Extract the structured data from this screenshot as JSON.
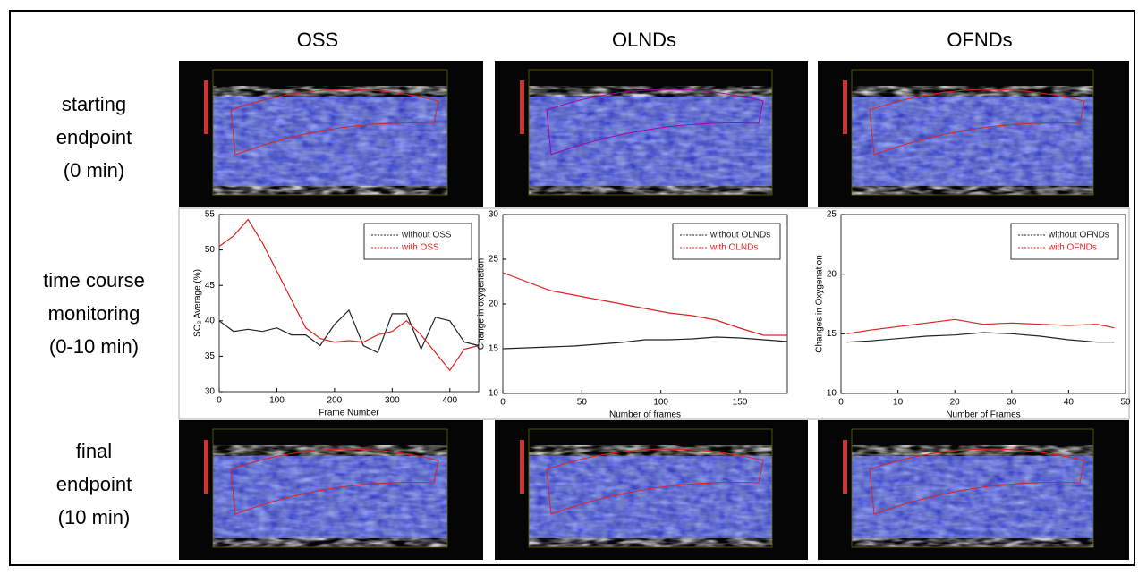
{
  "columns": [
    "OSS",
    "OLNDs",
    "OFNDs"
  ],
  "rows": [
    [
      "starting",
      "endpoint",
      "(0 min)"
    ],
    [
      "time course",
      "monitoring",
      "(0-10 min)"
    ],
    [
      "final",
      "endpoint",
      "(10 min)"
    ]
  ],
  "chart_data": [
    {
      "type": "line",
      "xlabel": "Frame Number",
      "ylabel": "SO₂ Average (%)",
      "x": [
        0,
        25,
        50,
        75,
        100,
        125,
        150,
        175,
        200,
        225,
        250,
        275,
        300,
        325,
        350,
        375,
        400,
        425,
        450
      ],
      "series": [
        {
          "name": "without OSS",
          "color": "#222222",
          "values": [
            40,
            38.5,
            38.8,
            38.5,
            39,
            38,
            38,
            36.5,
            39.5,
            41.5,
            36.5,
            35.5,
            41,
            41,
            36,
            40.5,
            40,
            37,
            36.5
          ]
        },
        {
          "name": "with OSS",
          "color": "#e02020",
          "values": [
            50.5,
            52,
            54.3,
            51,
            47,
            43,
            39,
            37.5,
            37,
            37.2,
            37,
            38,
            38.5,
            40,
            38,
            35.5,
            33,
            36,
            36.5
          ]
        }
      ],
      "xlim": [
        0,
        450
      ],
      "xticks": [
        0,
        100,
        200,
        300,
        400
      ],
      "ylim": [
        30,
        55
      ],
      "yticks": [
        30,
        35,
        40,
        45,
        50,
        55
      ],
      "legend": "upper right"
    },
    {
      "type": "line",
      "xlabel": "Number of frames",
      "ylabel": "Change in oxygenation",
      "x": [
        0,
        15,
        30,
        45,
        60,
        75,
        90,
        105,
        120,
        135,
        150,
        165,
        180
      ],
      "series": [
        {
          "name": "without OLNDs",
          "color": "#222222",
          "values": [
            15,
            15.1,
            15.2,
            15.3,
            15.5,
            15.7,
            16,
            16,
            16.1,
            16.3,
            16.2,
            16,
            15.8
          ]
        },
        {
          "name": "with OLNDs",
          "color": "#e02020",
          "values": [
            23.5,
            22.5,
            21.5,
            21,
            20.5,
            20,
            19.5,
            19,
            18.7,
            18.2,
            17.3,
            16.5,
            16.5
          ]
        }
      ],
      "xlim": [
        0,
        180
      ],
      "xticks": [
        0,
        50,
        100,
        150
      ],
      "ylim": [
        10,
        30
      ],
      "yticks": [
        10,
        15,
        20,
        25,
        30
      ],
      "legend": "upper right"
    },
    {
      "type": "line",
      "xlabel": "Number of Frames",
      "ylabel": "Changes in Oxygenation",
      "x": [
        1,
        5,
        10,
        15,
        20,
        25,
        30,
        35,
        40,
        45,
        48
      ],
      "series": [
        {
          "name": "without OFNDs",
          "color": "#222222",
          "values": [
            14.3,
            14.4,
            14.6,
            14.8,
            14.9,
            15.1,
            15,
            14.8,
            14.5,
            14.3,
            14.3
          ]
        },
        {
          "name": "with OFNDs",
          "color": "#e02020",
          "values": [
            15,
            15.3,
            15.6,
            15.9,
            16.2,
            15.8,
            15.9,
            15.8,
            15.7,
            15.8,
            15.5
          ]
        }
      ],
      "xlim": [
        0,
        50
      ],
      "xticks": [
        0,
        10,
        20,
        30,
        40,
        50
      ],
      "ylim": [
        10,
        25
      ],
      "yticks": [
        10,
        15,
        20,
        25
      ],
      "legend": "upper right"
    }
  ]
}
